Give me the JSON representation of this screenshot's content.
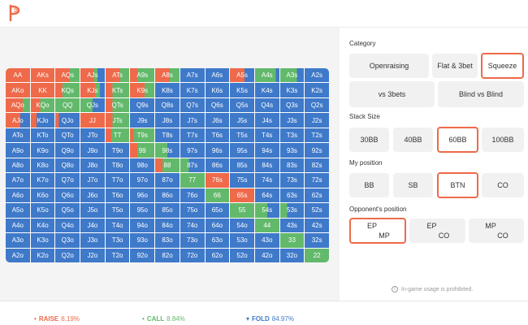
{
  "colors": {
    "raise": "#ee6a4a",
    "call": "#63b96b",
    "fold": "#3f79c9",
    "active_border": "#ee6a4a"
  },
  "logo": {
    "icon": "logo-icon"
  },
  "grid": {
    "rows": [
      [
        "AA",
        "AKs",
        "AQs",
        "AJs",
        "ATs",
        "A9s",
        "A8s",
        "A7s",
        "A6s",
        "A5s",
        "A4s",
        "A3s",
        "A2s"
      ],
      [
        "AKo",
        "KK",
        "KQs",
        "KJs",
        "KTs",
        "K9s",
        "K8s",
        "K7s",
        "K6s",
        "K5s",
        "K4s",
        "K3s",
        "K2s"
      ],
      [
        "AQo",
        "KQo",
        "QQ",
        "QJs",
        "QTs",
        "Q9s",
        "Q8s",
        "Q7s",
        "Q6s",
        "Q5s",
        "Q4s",
        "Q3s",
        "Q2s"
      ],
      [
        "AJo",
        "KJo",
        "QJo",
        "JJ",
        "JTs",
        "J9s",
        "J8s",
        "J7s",
        "J6s",
        "J5s",
        "J4s",
        "J3s",
        "J2s"
      ],
      [
        "ATo",
        "KTo",
        "QTo",
        "JTo",
        "TT",
        "T9s",
        "T8s",
        "T7s",
        "T6s",
        "T5s",
        "T4s",
        "T3s",
        "T2s"
      ],
      [
        "A9o",
        "K9o",
        "Q9o",
        "J9o",
        "T9o",
        "99",
        "98s",
        "97s",
        "96s",
        "95s",
        "94s",
        "93s",
        "92s"
      ],
      [
        "A8o",
        "K8o",
        "Q8o",
        "J8o",
        "T8o",
        "98o",
        "88",
        "87s",
        "86s",
        "85s",
        "84s",
        "83s",
        "82s"
      ],
      [
        "A7o",
        "K7o",
        "Q7o",
        "J7o",
        "T7o",
        "97o",
        "87o",
        "77",
        "76s",
        "75s",
        "74s",
        "73s",
        "72s"
      ],
      [
        "A6o",
        "K6o",
        "Q6o",
        "J6o",
        "T6o",
        "96o",
        "86o",
        "76o",
        "66",
        "65s",
        "64s",
        "63s",
        "62s"
      ],
      [
        "A5o",
        "K5o",
        "Q5o",
        "J5o",
        "T5o",
        "95o",
        "85o",
        "75o",
        "65o",
        "55",
        "54s",
        "53s",
        "52s"
      ],
      [
        "A4o",
        "K4o",
        "Q4o",
        "J4o",
        "T4o",
        "94o",
        "84o",
        "74o",
        "64o",
        "54o",
        "44",
        "43s",
        "42s"
      ],
      [
        "A3o",
        "K3o",
        "Q3o",
        "J3o",
        "T3o",
        "93o",
        "83o",
        "73o",
        "63o",
        "53o",
        "43o",
        "33",
        "32s"
      ],
      [
        "A2o",
        "K2o",
        "Q2o",
        "J2o",
        "T2o",
        "92o",
        "82o",
        "72o",
        "62o",
        "52o",
        "42o",
        "32o",
        "22"
      ]
    ],
    "mix": {
      "0,0": [
        1,
        0
      ],
      "0,1": [
        1,
        0
      ],
      "0,2": [
        0.6,
        0.4
      ],
      "0,3": [
        0.55,
        0.15
      ],
      "0,4": [
        0.6,
        0.4
      ],
      "0,5": [
        0.3,
        0.7
      ],
      "0,6": [
        0.6,
        0.4
      ],
      "0,9": [
        0.6,
        0
      ],
      "0,10": [
        0,
        0.85
      ],
      "0,11": [
        0,
        0.7
      ],
      "1,0": [
        1,
        0
      ],
      "1,1": [
        1,
        0
      ],
      "1,2": [
        0.3,
        0.7
      ],
      "1,3": [
        0.6,
        0.2
      ],
      "1,4": [
        0.3,
        0.7
      ],
      "1,5": [
        0.6,
        0.4
      ],
      "2,0": [
        0.7,
        0.3
      ],
      "2,1": [
        0.4,
        0.6
      ],
      "2,2": [
        0,
        1
      ],
      "2,3": [
        0,
        0.5
      ],
      "2,4": [
        0.3,
        0.7
      ],
      "3,0": [
        0.6,
        0
      ],
      "3,1": [
        0.25,
        0
      ],
      "3,2": [
        0.15,
        0
      ],
      "3,3": [
        1,
        0
      ],
      "3,4": [
        0.3,
        0.7
      ],
      "4,4": [
        0.25,
        0.75
      ],
      "4,5": [
        0.15,
        0.85
      ],
      "5,5": [
        0.3,
        0.7
      ],
      "5,6": [
        0,
        0.5
      ],
      "6,6": [
        0.3,
        0.7
      ],
      "6,7": [
        0,
        0.35
      ],
      "7,7": [
        0,
        1
      ],
      "7,8": [
        1,
        0
      ],
      "8,8": [
        0,
        1
      ],
      "8,9": [
        1,
        0
      ],
      "9,9": [
        0,
        1
      ],
      "9,10": [
        0,
        0.5
      ],
      "9,11": [
        0,
        0.3
      ],
      "10,10": [
        0,
        1
      ],
      "11,11": [
        0,
        1
      ],
      "12,12": [
        0,
        1
      ]
    }
  },
  "category": {
    "title": "Category",
    "buttons": [
      "Openraising",
      "Flat & 3bet",
      "Squeeze",
      "vs 3bets",
      "Blind vs Blind"
    ],
    "active": "Squeeze"
  },
  "stack": {
    "title": "Stack Size",
    "buttons": [
      "30BB",
      "40BB",
      "60BB",
      "100BB"
    ],
    "active": "60BB"
  },
  "position": {
    "title": "My position",
    "buttons": [
      "BB",
      "SB",
      "BTN",
      "CO"
    ],
    "active": "BTN"
  },
  "opponent": {
    "title": "Opponent's position",
    "buttons": [
      {
        "top": "EP",
        "bottom": "MP"
      },
      {
        "top": "EP",
        "bottom": "CO"
      },
      {
        "top": "MP",
        "bottom": "CO"
      }
    ],
    "active_index": 0
  },
  "notice": {
    "icon": "info-icon",
    "icon_glyph": "i",
    "text": "In-game usage is prohibited."
  },
  "stats": {
    "raise_label": "RAISE",
    "raise_value": "6.19%",
    "call_label": "CALL",
    "call_value": "8.84%",
    "fold_label": "FOLD",
    "fold_value": "84.97%"
  }
}
